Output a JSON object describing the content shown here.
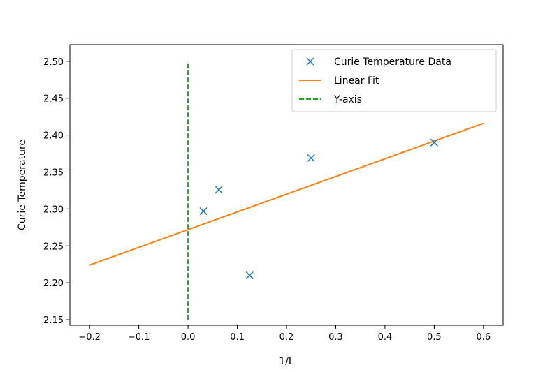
{
  "chart_data": {
    "type": "scatter",
    "title": "",
    "xlabel": "1/L",
    "ylabel": "Curie Temperature",
    "xlim": [
      -0.24,
      0.64
    ],
    "ylim": [
      2.1425,
      2.5225
    ],
    "x_ticks": [
      -0.2,
      -0.1,
      0.0,
      0.1,
      0.2,
      0.3,
      0.4,
      0.5,
      0.6
    ],
    "x_tick_labels": [
      "−0.2",
      "−0.1",
      "0.0",
      "0.1",
      "0.2",
      "0.3",
      "0.4",
      "0.5",
      "0.6"
    ],
    "y_ticks": [
      2.15,
      2.2,
      2.25,
      2.3,
      2.35,
      2.4,
      2.45,
      2.5
    ],
    "y_tick_labels": [
      "2.15",
      "2.20",
      "2.25",
      "2.30",
      "2.35",
      "2.40",
      "2.45",
      "2.50"
    ],
    "grid": false,
    "legend_position": "top-right",
    "series": [
      {
        "name": "Curie Temperature Data",
        "kind": "scatter",
        "marker": "x",
        "color": "#1f77b4",
        "x": [
          0.03125,
          0.0625,
          0.125,
          0.25,
          0.5
        ],
        "y": [
          2.297,
          2.326,
          2.21,
          2.369,
          2.39
        ]
      },
      {
        "name": "Linear Fit",
        "kind": "line",
        "color": "#ff7f0e",
        "x": [
          -0.2,
          0.6
        ],
        "y": [
          2.224,
          2.416
        ]
      },
      {
        "name": "Y-axis",
        "kind": "line",
        "style": "dashed",
        "color": "#2ca02c",
        "x": [
          0.0,
          0.0
        ],
        "y": [
          2.15,
          2.5
        ]
      }
    ]
  }
}
